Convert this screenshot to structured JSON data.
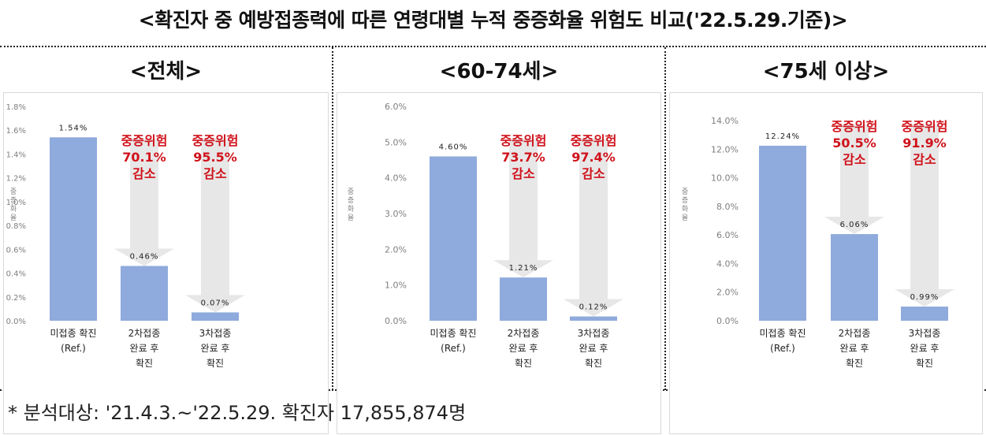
{
  "page_title": "<확진자 중 예방접종력에 따른 연령대별 누적 중증화율 위험도 비교('22.5.29.기준)>",
  "footnote": "* 분석대상: '21.4.3.~'22.5.29. 확진자 17,855,874명",
  "colors": {
    "bar": "#8faadc",
    "arrow": "#e7e7e7",
    "risk_text": "#d0121b",
    "axis_text": "#7f7f7f"
  },
  "chart_data": [
    {
      "type": "bar",
      "title": "<전체>",
      "ylabel": "중증화율",
      "ylim": [
        0,
        1.8
      ],
      "ytick_labels": [
        "0.0%",
        "0.2%",
        "0.4%",
        "0.6%",
        "0.8%",
        "1.0%",
        "1.2%",
        "1.4%",
        "1.6%",
        "1.8%"
      ],
      "categories": [
        [
          "미접종 확진",
          "(Ref.)"
        ],
        [
          "2차접종",
          "완료 후",
          "확진"
        ],
        [
          "3차접종",
          "완료 후",
          "확진"
        ]
      ],
      "values": [
        1.54,
        0.46,
        0.07
      ],
      "value_labels": [
        "1.54%",
        "0.46%",
        "0.07%"
      ],
      "annotations": [
        {
          "category_index": 1,
          "lines": [
            "중증위험",
            "70.1%",
            "감소"
          ]
        },
        {
          "category_index": 2,
          "lines": [
            "중증위험",
            "95.5%",
            "감소"
          ]
        }
      ]
    },
    {
      "type": "bar",
      "title": "<60-74세>",
      "ylabel": "중증화율",
      "ylim": [
        0,
        6.0
      ],
      "ytick_labels": [
        "0.0%",
        "1.0%",
        "2.0%",
        "3.0%",
        "4.0%",
        "5.0%",
        "6.0%"
      ],
      "categories": [
        [
          "미접종 확진",
          "(Ref.)"
        ],
        [
          "2차접종",
          "완료 후",
          "확진"
        ],
        [
          "3차접종",
          "완료 후",
          "확진"
        ]
      ],
      "values": [
        4.6,
        1.21,
        0.12
      ],
      "value_labels": [
        "4.60%",
        "1.21%",
        "0.12%"
      ],
      "annotations": [
        {
          "category_index": 1,
          "lines": [
            "중증위험",
            "73.7%",
            "감소"
          ]
        },
        {
          "category_index": 2,
          "lines": [
            "중증위험",
            "97.4%",
            "감소"
          ]
        }
      ]
    },
    {
      "type": "bar",
      "title": "<75세 이상>",
      "ylabel": "중증화율",
      "ylim": [
        0,
        14.0
      ],
      "ytick_labels": [
        "0.0%",
        "2.0%",
        "4.0%",
        "6.0%",
        "8.0%",
        "10.0%",
        "12.0%",
        "14.0%"
      ],
      "categories": [
        [
          "미접종 확진",
          "(Ref.)"
        ],
        [
          "2차접종",
          "완료 후",
          "확진"
        ],
        [
          "3차접종",
          "완료 후",
          "확진"
        ]
      ],
      "values": [
        12.24,
        6.06,
        0.99
      ],
      "value_labels": [
        "12.24%",
        "6.06%",
        "0.99%"
      ],
      "annotations": [
        {
          "category_index": 1,
          "lines": [
            "중증위험",
            "50.5%",
            "감소"
          ]
        },
        {
          "category_index": 2,
          "lines": [
            "중증위험",
            "91.9%",
            "감소"
          ]
        }
      ]
    }
  ]
}
